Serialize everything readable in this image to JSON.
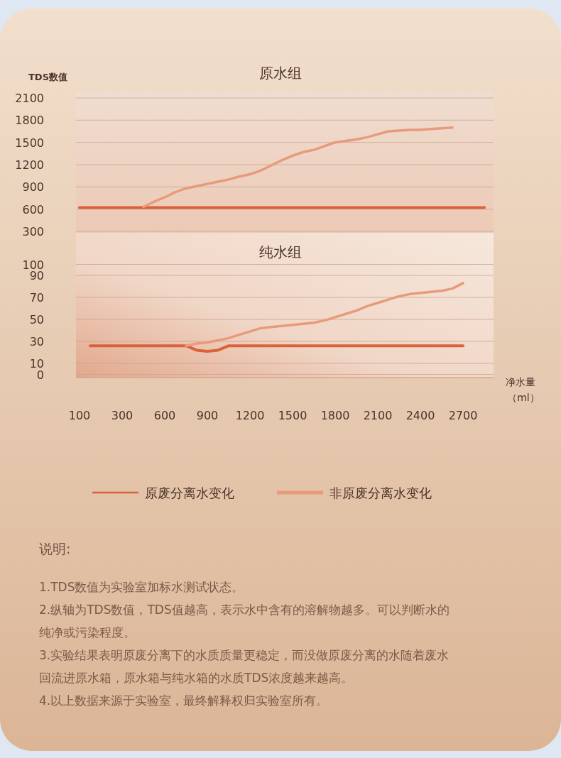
{
  "chart_data": [
    {
      "type": "line",
      "title": "原水组",
      "ylabel": "TDS数值",
      "ylim": [
        300,
        2100
      ],
      "yticks": [
        300,
        600,
        900,
        1200,
        1500,
        1800,
        2100
      ],
      "grid": "y",
      "legend": false,
      "tick_labels": "y",
      "marker": "none",
      "line_style": "solid",
      "series": [
        {
          "color": "#d9623a",
          "values": [
            620,
            620,
            620,
            620,
            620,
            620,
            620,
            620,
            620,
            620,
            620,
            620,
            620,
            620,
            620,
            620,
            620,
            620,
            620,
            620,
            620,
            620,
            620,
            620,
            620,
            620,
            620,
            620,
            620,
            620,
            620,
            620,
            620,
            620,
            620,
            620,
            620,
            620,
            620
          ]
        },
        {
          "color": "#e89a7c",
          "values": [
            null,
            null,
            null,
            null,
            null,
            null,
            630,
            700,
            760,
            830,
            880,
            910,
            940,
            970,
            1000,
            1040,
            1070,
            1120,
            1190,
            1260,
            1320,
            1370,
            1400,
            1450,
            1500,
            1520,
            1540,
            1570,
            1610,
            1650,
            1660,
            1670,
            1670,
            1680,
            1690,
            1700,
            null,
            null,
            null
          ]
        }
      ]
    },
    {
      "type": "line",
      "title": "纯水组",
      "xlabel": "净水量（ml）",
      "categories": [
        "100",
        null,
        null,
        null,
        "300",
        null,
        null,
        null,
        "600",
        null,
        null,
        null,
        "900",
        null,
        null,
        null,
        "1200",
        null,
        null,
        null,
        "1500",
        null,
        null,
        null,
        "1800",
        null,
        null,
        null,
        "2100",
        null,
        null,
        null,
        "2400",
        null,
        null,
        null,
        "2700",
        null,
        null
      ],
      "ylim": [
        0,
        100
      ],
      "yticks": [
        0,
        10,
        30,
        50,
        70,
        90,
        100
      ],
      "grid": "y",
      "legend": "bottom",
      "marker": "none",
      "line_style": "solid",
      "series": [
        {
          "name": "原废分离水变化",
          "color": "#d9623a",
          "values": [
            null,
            26,
            26,
            26,
            26,
            26,
            26,
            26,
            26,
            26,
            26,
            22,
            21,
            22,
            26,
            26,
            26,
            26,
            26,
            26,
            26,
            26,
            26,
            26,
            26,
            26,
            26,
            26,
            26,
            26,
            26,
            26,
            26,
            26,
            26,
            26,
            26,
            null,
            null
          ]
        },
        {
          "name": "非原废分离水变化",
          "color": "#e89a7c",
          "values": [
            null,
            null,
            null,
            null,
            null,
            null,
            null,
            null,
            null,
            null,
            26,
            28,
            29,
            31,
            33,
            36,
            39,
            42,
            43,
            44,
            45,
            46,
            47,
            49,
            52,
            55,
            58,
            62,
            65,
            68,
            71,
            73,
            74,
            75,
            76,
            78,
            83,
            null,
            null
          ]
        }
      ],
      "annotations": [
        "说明:",
        "1.TDS数值为实验室加标水测试状态。",
        "2.纵轴为TDS数值，TDS值越高，表示水中含有的溶解物越多。可以判断水的纯净或污染程度。",
        "3.实验结果表明原废分离下的水质质量更稳定，而没做原废分离的水随着废水回流进原水箱，原水箱与纯水箱的水质TDS浓度越来越高。",
        "4.以上数据来源于实验室，最终解释权归实验室所有。"
      ]
    }
  ]
}
